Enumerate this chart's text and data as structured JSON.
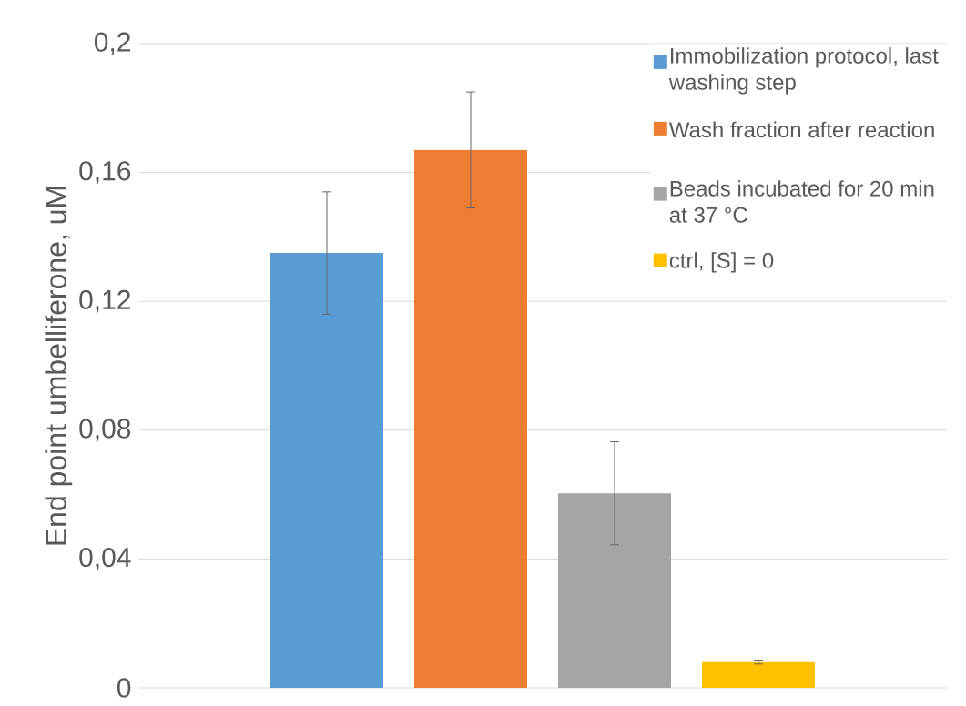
{
  "chart_data": {
    "type": "bar",
    "ylabel": "End point umbelliferone, uM",
    "categories": [
      null
    ],
    "series": [
      {
        "name": "Immobilization protocol, last washing step",
        "color": "#5b9bd5",
        "values": [
          0.135
        ],
        "errors": [
          0.019
        ]
      },
      {
        "name": "Wash fraction after reaction",
        "color": "#ed7d31",
        "values": [
          0.167
        ],
        "errors": [
          0.018
        ]
      },
      {
        "name": "Beads incubated for 20 min at 37 °C",
        "color": "#a5a5a5",
        "values": [
          0.0604
        ],
        "errors": [
          0.016
        ]
      },
      {
        "name": "ctrl, [S] = 0",
        "color": "#ffc000",
        "values": [
          0.008
        ],
        "errors": [
          0.0006
        ]
      }
    ],
    "ylim": [
      0,
      0.2
    ],
    "yticks": [
      {
        "value": 0,
        "label": "0"
      },
      {
        "value": 0.04,
        "label": "0,04"
      },
      {
        "value": 0.08,
        "label": "0,08"
      },
      {
        "value": 0.12,
        "label": "0,12"
      },
      {
        "value": 0.16,
        "label": "0,16"
      },
      {
        "value": 0.2,
        "label": "0,2"
      }
    ],
    "grid": "y",
    "legend": "top right"
  }
}
